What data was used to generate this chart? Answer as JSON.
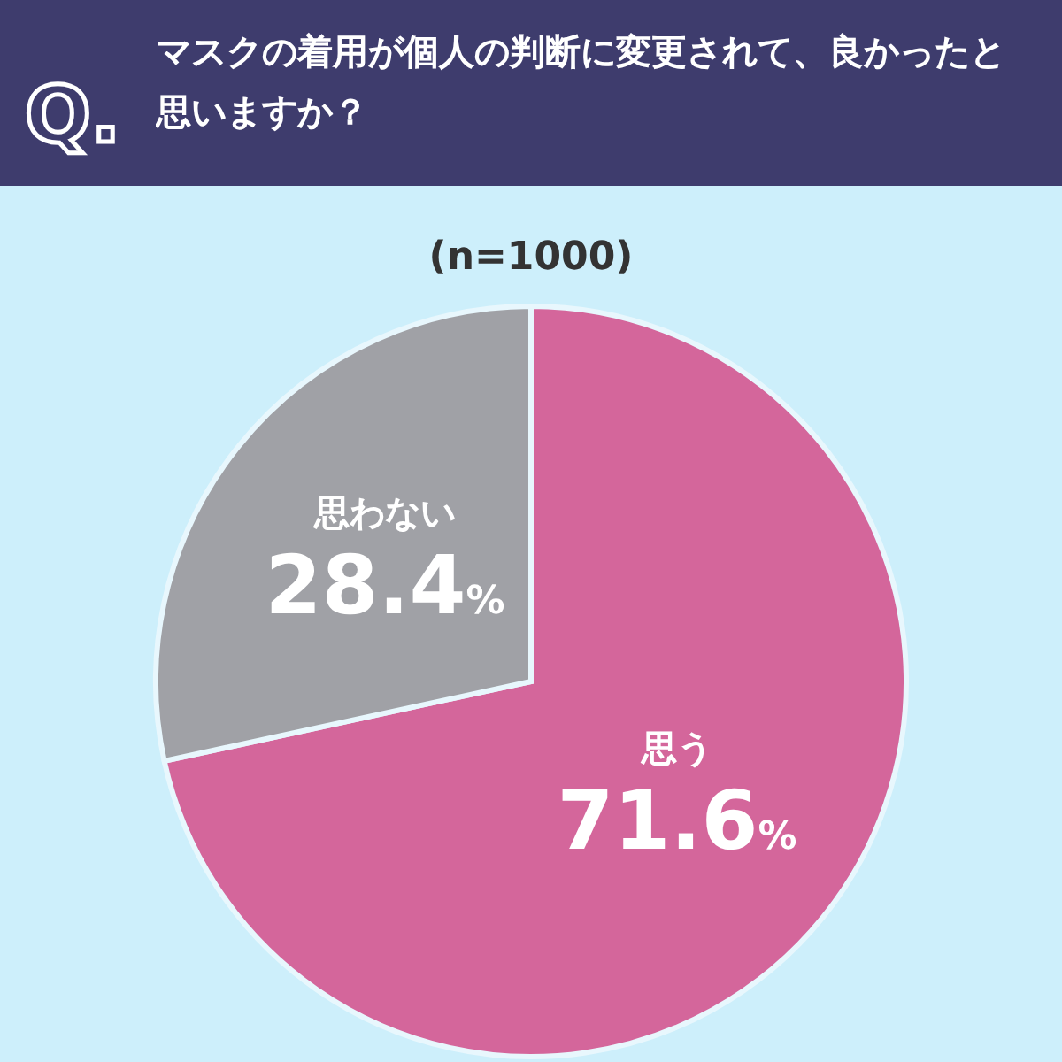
{
  "chart_data": {
    "type": "pie",
    "title": "マスクの着用が個人の判断に変更されて、良かったと思いますか？",
    "subtitle": "(n=1000)",
    "annotations": [
      "Q."
    ],
    "categories": [
      "思う",
      "思わない"
    ],
    "values": [
      71.6,
      28.4
    ],
    "colors": [
      "#d4669b",
      "#a0a1a6"
    ],
    "value_labels": [
      "71.6%",
      "28.4%"
    ]
  }
}
